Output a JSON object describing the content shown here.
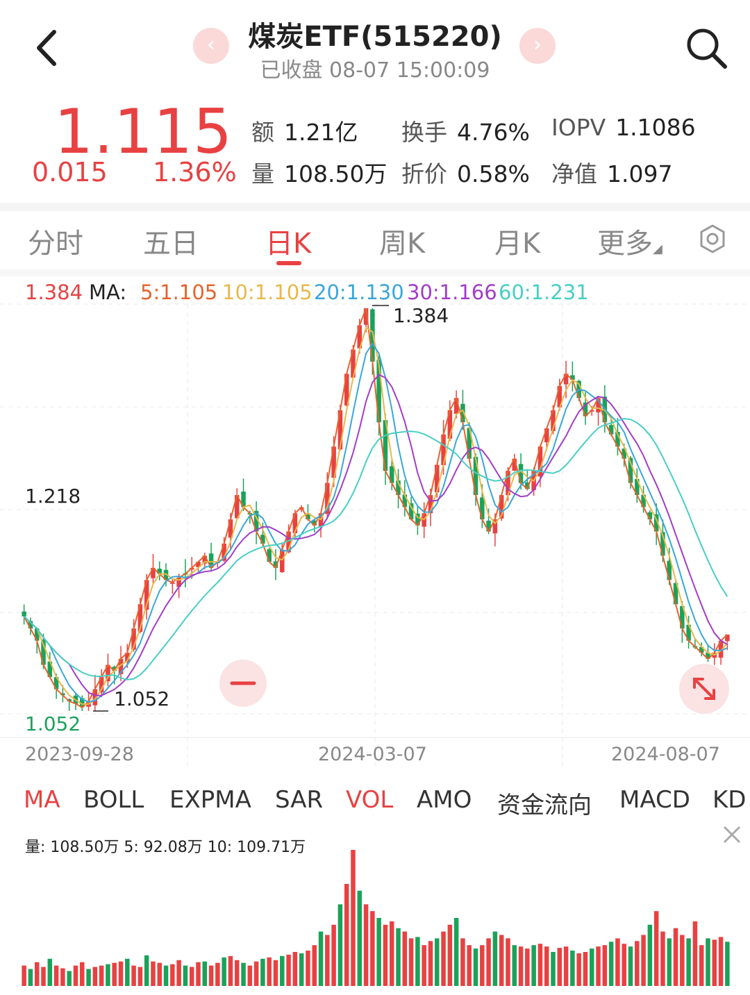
{
  "header": {
    "title": "煤炭ETF(515220)",
    "subtitle": "已收盘 08-07 15:00:09",
    "prev_glyph": "‹",
    "next_glyph": "›"
  },
  "quote": {
    "price": "1.115",
    "change": "0.015",
    "change_pct": "1.36%",
    "stats": [
      {
        "key": "额",
        "value": "1.21亿"
      },
      {
        "key": "换手",
        "value": "4.76%"
      },
      {
        "key": "IOPV",
        "value": "1.1086"
      },
      {
        "key": "量",
        "value": "108.50万"
      },
      {
        "key": "折价",
        "value": "0.58%"
      },
      {
        "key": "净值",
        "value": "1.097"
      }
    ]
  },
  "tabs": [
    {
      "label": "分时"
    },
    {
      "label": "五日"
    },
    {
      "label": "日K"
    },
    {
      "label": "周K"
    },
    {
      "label": "月K"
    },
    {
      "label": "更多"
    }
  ],
  "active_tab": "日K",
  "ma_legend": {
    "value": "1.384",
    "label": "MA:",
    "items": [
      {
        "text": "5:1.105",
        "color": "#e8622c"
      },
      {
        "text": "10:1.105",
        "color": "#e8b84a"
      },
      {
        "text": "20:1.130",
        "color": "#3aa6d8"
      },
      {
        "text": "30:1.166",
        "color": "#a23cc8"
      },
      {
        "text": "60:1.231",
        "color": "#48cfc4"
      }
    ]
  },
  "indicators": [
    {
      "label": "MA",
      "active": true
    },
    {
      "label": "BOLL",
      "active": false
    },
    {
      "label": "EXPMA",
      "active": false
    },
    {
      "label": "SAR",
      "active": false
    },
    {
      "label": "VOL",
      "active": true
    },
    {
      "label": "AMO",
      "active": false
    },
    {
      "label": "资金流向",
      "active": false
    },
    {
      "label": "MACD",
      "active": false
    },
    {
      "label": "KD",
      "active": false
    }
  ],
  "volume_legend": "量: 108.50万  5: 92.08万  10: 109.71万",
  "colors": {
    "up": "#e84142",
    "down": "#1ba25a",
    "accent": "#e84142"
  },
  "icons": {
    "back": "chevron-left-icon",
    "search": "search-icon",
    "settings": "gear-icon",
    "zoom_out": "minus-icon",
    "expand": "expand-icon",
    "close": "close-icon"
  },
  "chart_data": [
    {
      "type": "candlestick",
      "title": "",
      "x_ticks": [
        "2023-09-28",
        "2024-03-07",
        "2024-08-07"
      ],
      "y_labels": [
        "1.218",
        "1.052"
      ],
      "max_label": "1.384",
      "min_label": "1.052",
      "ylim": [
        1.052,
        1.384
      ],
      "closes": [
        1.13,
        1.12,
        1.11,
        1.09,
        1.08,
        1.07,
        1.065,
        1.06,
        1.058,
        1.055,
        1.06,
        1.07,
        1.08,
        1.09,
        1.085,
        1.095,
        1.1,
        1.12,
        1.14,
        1.16,
        1.17,
        1.165,
        1.16,
        1.158,
        1.162,
        1.165,
        1.17,
        1.175,
        1.18,
        1.17,
        1.175,
        1.19,
        1.21,
        1.23,
        1.22,
        1.215,
        1.2,
        1.19,
        1.175,
        1.17,
        1.185,
        1.2,
        1.215,
        1.22,
        1.21,
        1.205,
        1.215,
        1.24,
        1.27,
        1.3,
        1.33,
        1.35,
        1.37,
        1.384,
        1.34,
        1.29,
        1.25,
        1.24,
        1.23,
        1.22,
        1.21,
        1.205,
        1.215,
        1.23,
        1.255,
        1.28,
        1.3,
        1.31,
        1.29,
        1.26,
        1.23,
        1.21,
        1.2,
        1.21,
        1.23,
        1.25,
        1.26,
        1.24,
        1.235,
        1.25,
        1.27,
        1.285,
        1.3,
        1.32,
        1.33,
        1.325,
        1.31,
        1.295,
        1.3,
        1.31,
        1.29,
        1.28,
        1.27,
        1.26,
        1.24,
        1.23,
        1.22,
        1.21,
        1.2,
        1.18,
        1.16,
        1.14,
        1.12,
        1.11,
        1.105,
        1.1,
        1.095,
        1.1,
        1.11,
        1.115
      ],
      "ma": [
        {
          "name": "MA5",
          "color": "#e8622c"
        },
        {
          "name": "MA10",
          "color": "#e8b84a"
        },
        {
          "name": "MA20",
          "color": "#3aa6d8"
        },
        {
          "name": "MA30",
          "color": "#a23cc8"
        },
        {
          "name": "MA60",
          "color": "#48cfc4"
        }
      ]
    },
    {
      "type": "bar",
      "title": "VOL",
      "values": [
        30,
        25,
        35,
        28,
        40,
        30,
        26,
        22,
        30,
        35,
        25,
        28,
        30,
        32,
        34,
        36,
        40,
        30,
        28,
        45,
        36,
        34,
        30,
        32,
        38,
        30,
        28,
        35,
        36,
        30,
        34,
        42,
        44,
        38,
        34,
        30,
        36,
        40,
        42,
        38,
        44,
        46,
        50,
        48,
        52,
        60,
        80,
        75,
        90,
        120,
        150,
        200,
        140,
        120,
        110,
        100,
        90,
        95,
        85,
        80,
        70,
        72,
        60,
        66,
        70,
        80,
        90,
        100,
        70,
        60,
        55,
        60,
        70,
        80,
        75,
        70,
        60,
        58,
        55,
        60,
        62,
        58,
        50,
        56,
        58,
        52,
        48,
        50,
        55,
        58,
        60,
        65,
        70,
        62,
        58,
        66,
        75,
        90,
        110,
        80,
        70,
        85,
        75,
        70,
        95,
        60,
        70,
        68,
        72,
        65
      ]
    }
  ]
}
